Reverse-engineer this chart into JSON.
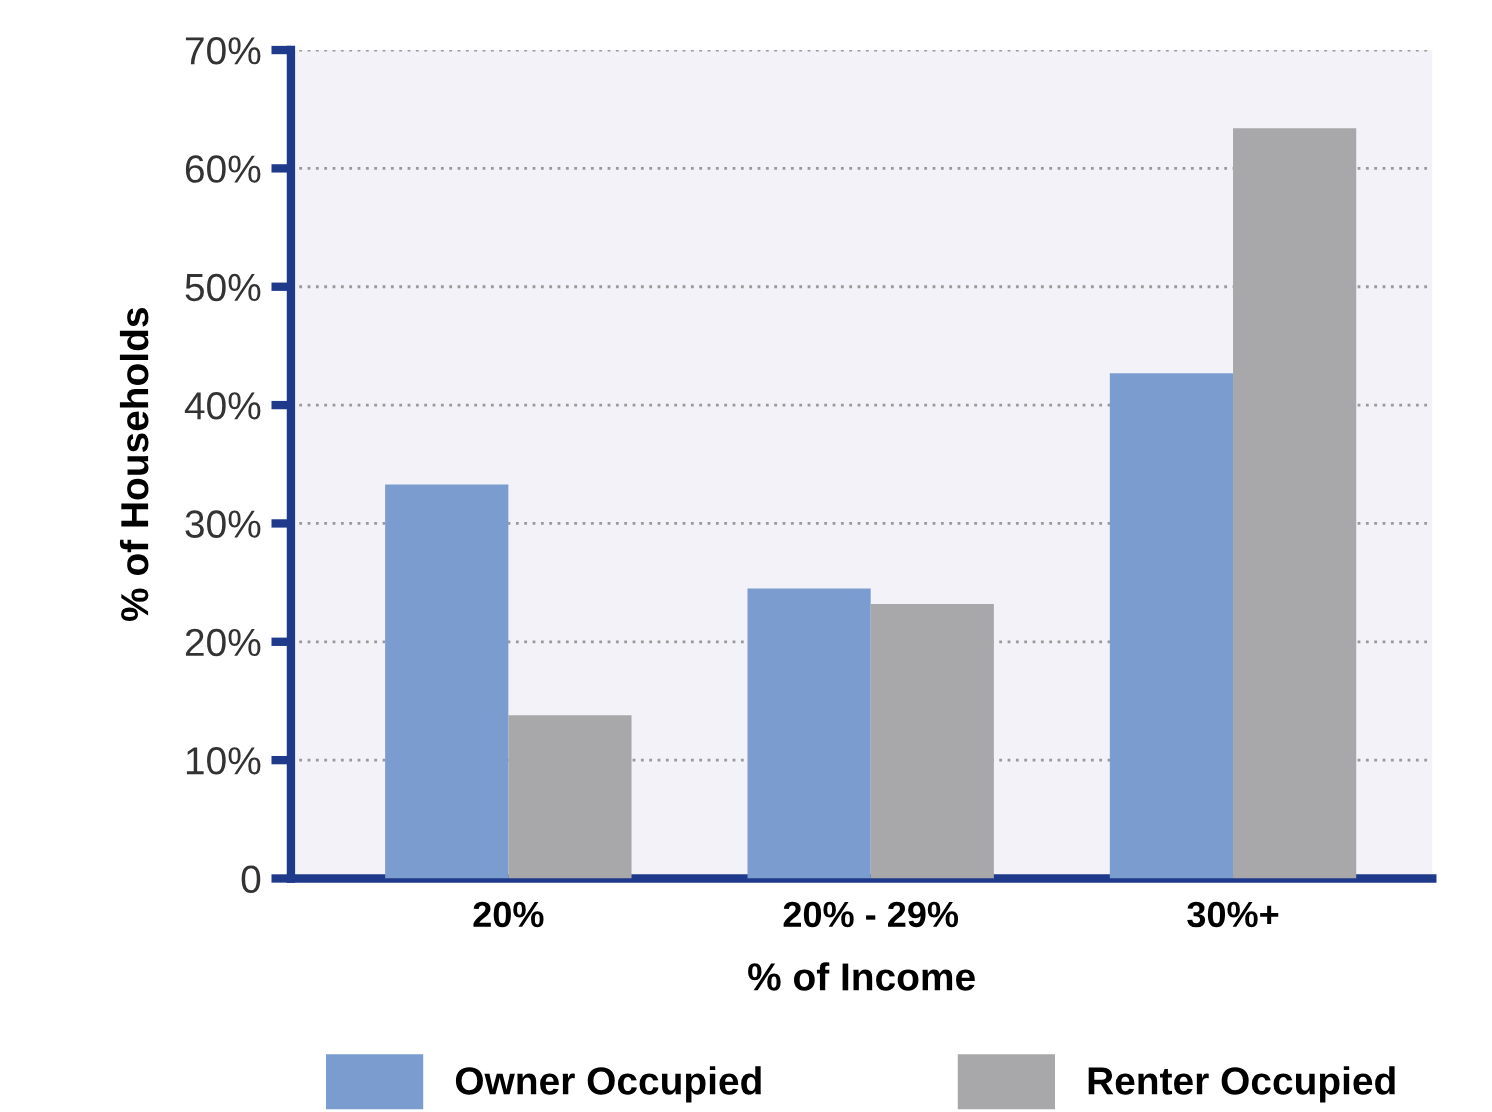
{
  "chart_data": {
    "type": "bar",
    "xlabel": "% of Income",
    "ylabel": "% of Households",
    "categories": [
      "20%",
      "20% - 29%",
      "30%+"
    ],
    "series": [
      {
        "name": "Owner Occupied",
        "color": "#7a9ccf",
        "values": [
          33.3,
          24.5,
          42.7
        ]
      },
      {
        "name": "Renter Occupied",
        "color": "#a8a8ab",
        "values": [
          13.8,
          23.2,
          63.4
        ]
      }
    ],
    "ylim": [
      0,
      70
    ],
    "yticks": [
      0,
      {
        "value": 10,
        "label": "10%"
      },
      {
        "value": 20,
        "label": "20%"
      },
      {
        "value": 30,
        "label": "30%"
      },
      {
        "value": 40,
        "label": "40%"
      },
      {
        "value": 50,
        "label": "50%"
      },
      {
        "value": 60,
        "label": "60%"
      },
      {
        "value": 70,
        "label": "70%"
      }
    ],
    "grid": "y",
    "legend": "bottom"
  }
}
